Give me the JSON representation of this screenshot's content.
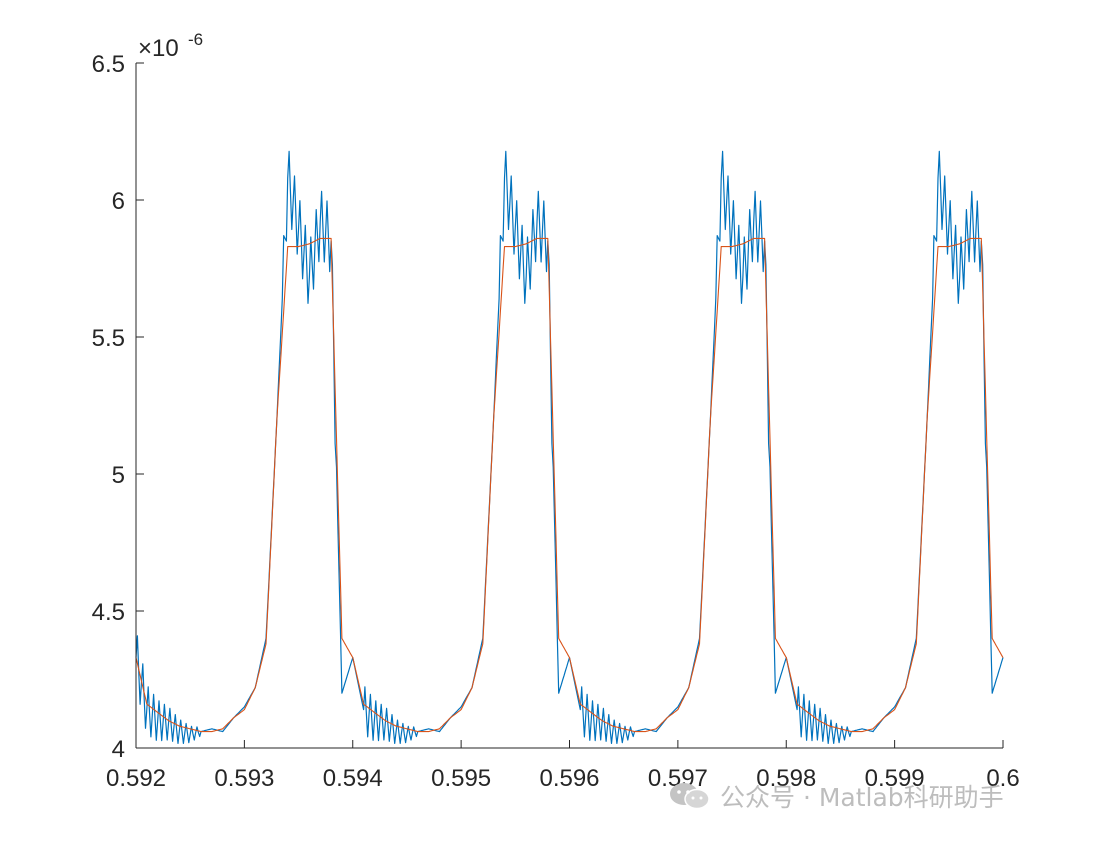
{
  "chart_data": {
    "type": "line",
    "title": "",
    "xlabel": "",
    "ylabel": "",
    "xlim": [
      0.592,
      0.6
    ],
    "ylim": [
      4.0,
      6.5
    ],
    "y_exponent_label": "×10",
    "y_exponent_power": "-6",
    "x_ticks": [
      "0.592",
      "0.593",
      "0.594",
      "0.595",
      "0.596",
      "0.597",
      "0.598",
      "0.599",
      "0.6"
    ],
    "x_tick_values": [
      0.592,
      0.593,
      0.594,
      0.595,
      0.596,
      0.597,
      0.598,
      0.599,
      0.6
    ],
    "y_ticks": [
      "4",
      "4.5",
      "5",
      "5.5",
      "6",
      "6.5"
    ],
    "y_tick_values": [
      4.0,
      4.5,
      5.0,
      5.5,
      6.0,
      6.5
    ],
    "grid": false,
    "period": 0.002,
    "series": [
      {
        "color": "#0072BD",
        "style": "noisy",
        "x": [
          0.0,
          0.0001,
          0.0002,
          0.0003,
          0.0004,
          0.0005,
          0.0006,
          0.0007,
          0.0008,
          0.0009,
          0.001,
          0.0011,
          0.0012,
          0.0013,
          0.0014,
          0.0015,
          0.0016,
          0.0017,
          0.0018,
          0.0019,
          0.002
        ],
        "y": [
          4.33,
          4.14,
          4.1,
          4.09,
          4.06,
          4.05,
          4.06,
          4.07,
          4.06,
          4.11,
          4.15,
          4.22,
          4.4,
          5.2,
          6.08,
          5.9,
          5.72,
          5.92,
          5.85,
          4.2,
          4.33
        ]
      },
      {
        "color": "#D95319",
        "style": "smooth",
        "x": [
          0.0,
          0.0001,
          0.0002,
          0.0003,
          0.0004,
          0.0005,
          0.0006,
          0.0007,
          0.0008,
          0.0009,
          0.001,
          0.0011,
          0.0012,
          0.0013,
          0.0014,
          0.0015,
          0.0016,
          0.0017,
          0.0018,
          0.0019,
          0.002
        ],
        "y": [
          4.33,
          4.16,
          4.13,
          4.1,
          4.08,
          4.07,
          4.06,
          4.06,
          4.07,
          4.11,
          4.14,
          4.22,
          4.38,
          5.2,
          5.83,
          5.83,
          5.84,
          5.86,
          5.86,
          4.4,
          4.33
        ]
      }
    ]
  },
  "watermark": {
    "icon": "wechat-icon",
    "text": "公众号 · Matlab科研助手"
  }
}
